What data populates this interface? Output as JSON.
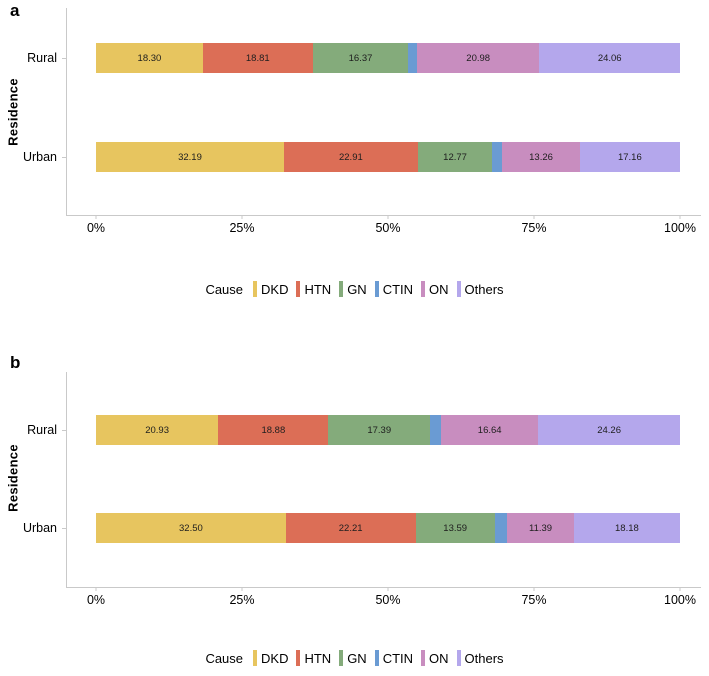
{
  "figure": {
    "background": "#ffffff",
    "axis_line_color": "#c9c9c9",
    "value_label_color": "#1e1e1e"
  },
  "colors": {
    "DKD": "#e7c55f",
    "HTN": "#dc6e56",
    "GN": "#84ab7b",
    "CTIN": "#6a9bd3",
    "ON": "#c88dbf",
    "Others": "#b4a7ec"
  },
  "chart_data": [
    {
      "type": "bar",
      "panel_label": "a",
      "orientation": "horizontal_stacked",
      "title": "",
      "xlabel": "",
      "ylabel": "Residence",
      "xlim": [
        0,
        100
      ],
      "x_ticks": [
        "0%",
        "25%",
        "50%",
        "75%",
        "100%"
      ],
      "grid": false,
      "legend_title": "Cause",
      "legend_position": "bottom",
      "categories": [
        "Rural",
        "Urban"
      ],
      "series": [
        {
          "name": "DKD",
          "values": [
            18.3,
            32.19
          ],
          "labels": [
            "18.30",
            "32.19"
          ]
        },
        {
          "name": "HTN",
          "values": [
            18.81,
            22.91
          ],
          "labels": [
            "18.81",
            "22.91"
          ]
        },
        {
          "name": "GN",
          "values": [
            16.37,
            12.77
          ],
          "labels": [
            "16.37",
            "12.77"
          ]
        },
        {
          "name": "CTIN",
          "values": [
            1.48,
            1.71
          ],
          "labels": [
            "",
            ""
          ]
        },
        {
          "name": "ON",
          "values": [
            20.98,
            13.26
          ],
          "labels": [
            "20.98",
            "13.26"
          ]
        },
        {
          "name": "Others",
          "values": [
            24.06,
            17.16
          ],
          "labels": [
            "24.06",
            "17.16"
          ]
        }
      ]
    },
    {
      "type": "bar",
      "panel_label": "b",
      "orientation": "horizontal_stacked",
      "title": "",
      "xlabel": "",
      "ylabel": "Residence",
      "xlim": [
        0,
        100
      ],
      "x_ticks": [
        "0%",
        "25%",
        "50%",
        "75%",
        "100%"
      ],
      "grid": false,
      "legend_title": "Cause",
      "legend_position": "bottom",
      "categories": [
        "Rural",
        "Urban"
      ],
      "series": [
        {
          "name": "DKD",
          "values": [
            20.93,
            32.5
          ],
          "labels": [
            "20.93",
            "32.50"
          ]
        },
        {
          "name": "HTN",
          "values": [
            18.88,
            22.21
          ],
          "labels": [
            "18.88",
            "22.21"
          ]
        },
        {
          "name": "GN",
          "values": [
            17.39,
            13.59
          ],
          "labels": [
            "17.39",
            "13.59"
          ]
        },
        {
          "name": "CTIN",
          "values": [
            1.9,
            2.13
          ],
          "labels": [
            "",
            ""
          ]
        },
        {
          "name": "ON",
          "values": [
            16.64,
            11.39
          ],
          "labels": [
            "16.64",
            "11.39"
          ]
        },
        {
          "name": "Others",
          "values": [
            24.26,
            18.18
          ],
          "labels": [
            "24.26",
            "18.18"
          ]
        }
      ]
    }
  ]
}
